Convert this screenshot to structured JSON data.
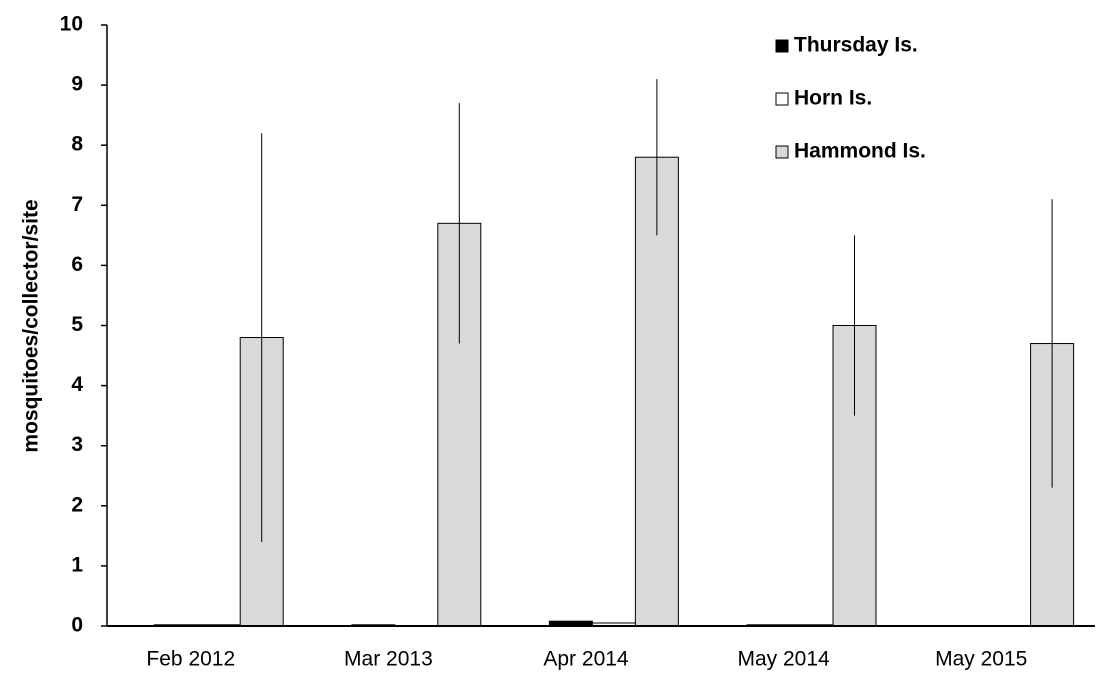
{
  "chart_data": {
    "type": "bar",
    "y_label": "mosquitoes/collector/site",
    "categories": [
      "Feb 2012",
      "Mar 2013",
      "Apr 2014",
      "May 2014",
      "May 2015"
    ],
    "series": [
      {
        "name": "Thursday Is.",
        "color": "#000000",
        "values": [
          0.02,
          0.02,
          0.08,
          0.02,
          0
        ]
      },
      {
        "name": "Horn Is.",
        "color": "#ffffff",
        "values": [
          0.02,
          0,
          0.05,
          0.02,
          0
        ]
      },
      {
        "name": "Hammond Is.",
        "color": "#d9d9d9",
        "values": [
          4.8,
          6.7,
          7.8,
          5.0,
          4.7
        ],
        "errors": [
          3.4,
          2.0,
          1.3,
          1.5,
          2.4
        ]
      }
    ],
    "ylim": [
      0,
      10
    ],
    "yticks": [
      0,
      1,
      2,
      3,
      4,
      5,
      6,
      7,
      8,
      9,
      10
    ],
    "legend": "upper right"
  }
}
